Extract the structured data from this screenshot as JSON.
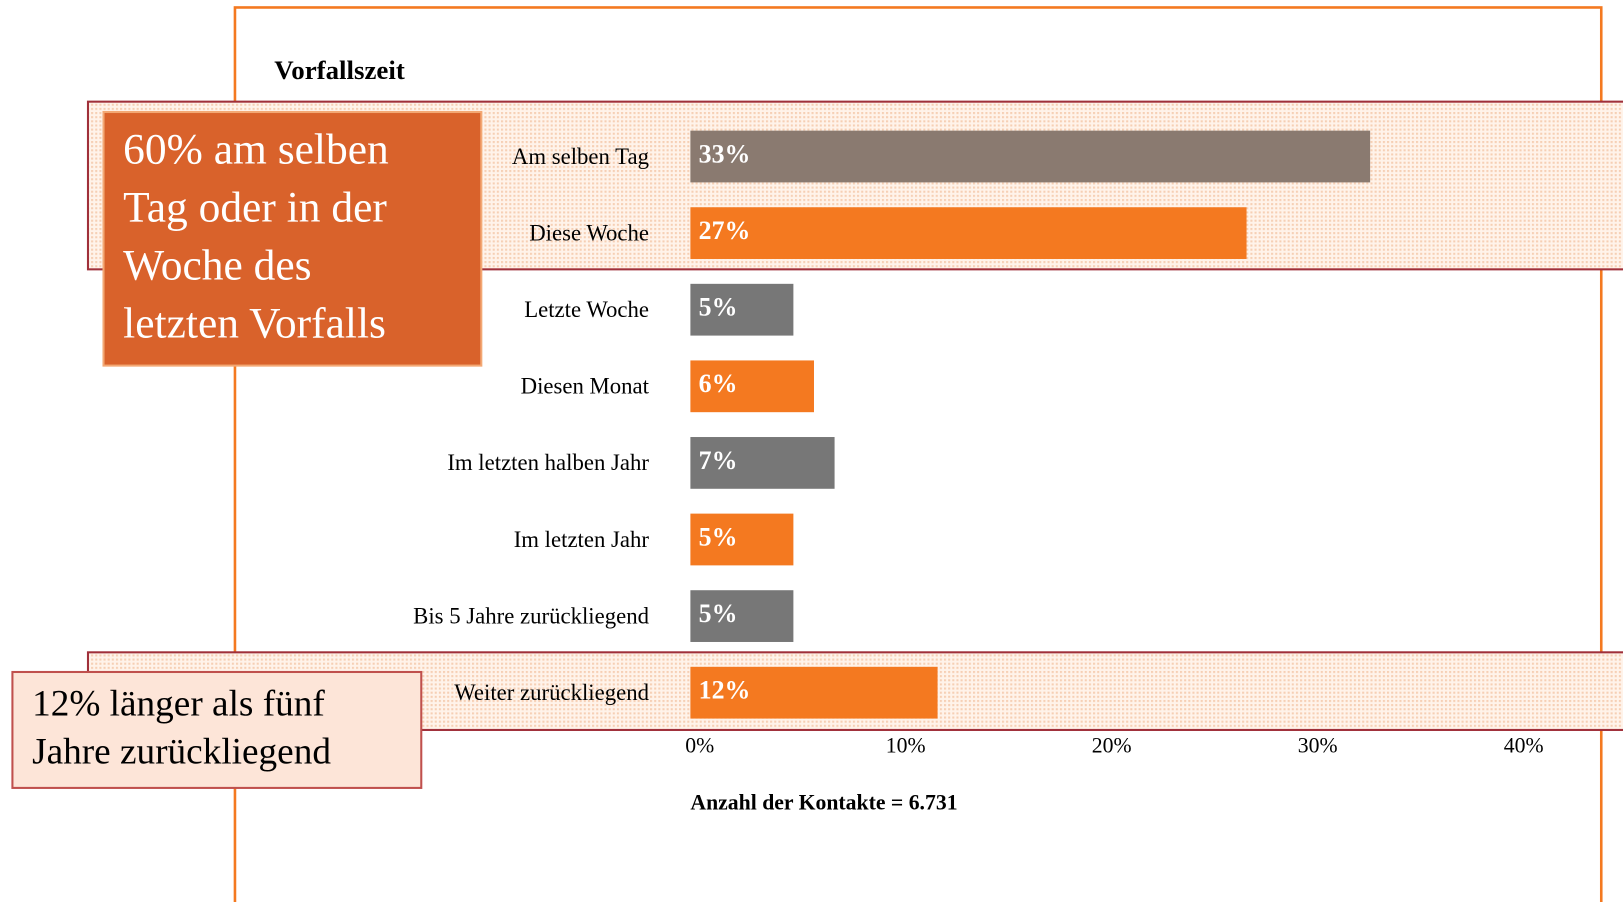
{
  "chart_data": {
    "type": "barh",
    "title": "Vorfallszeit",
    "categories": [
      "Am selben Tag",
      "Diese Woche",
      "Letzte Woche",
      "Diesen Monat",
      "Im letzten halben Jahr",
      "Im letzten Jahr",
      "Bis 5 Jahre zurückliegend",
      "Weiter zurückliegend"
    ],
    "values": [
      33,
      27,
      5,
      6,
      7,
      5,
      5,
      12
    ],
    "value_labels": [
      "33%",
      "27%",
      "5%",
      "6%",
      "7%",
      "5%",
      "5%",
      "12%"
    ],
    "colors": [
      "#8a7a70",
      "#f47920",
      "#777777",
      "#f47920",
      "#777777",
      "#f47920",
      "#777777",
      "#f47920"
    ],
    "xlim": [
      0,
      45
    ],
    "xticks": [
      {
        "value": 0,
        "label": "0%"
      },
      {
        "value": 10,
        "label": "10%"
      },
      {
        "value": 20,
        "label": "20%"
      },
      {
        "value": 30,
        "label": "30%"
      },
      {
        "value": 40,
        "label": "40%"
      }
    ],
    "xlabel": "Anzahl der Kontakte = 6.731",
    "annotations": [
      {
        "lines": [
          "60% am selben",
          "Tag oder in der",
          "Woche des",
          "letzten Vorfalls"
        ]
      },
      {
        "lines": [
          "12% länger als fünf",
          "Jahre zurückliegend"
        ]
      }
    ]
  }
}
